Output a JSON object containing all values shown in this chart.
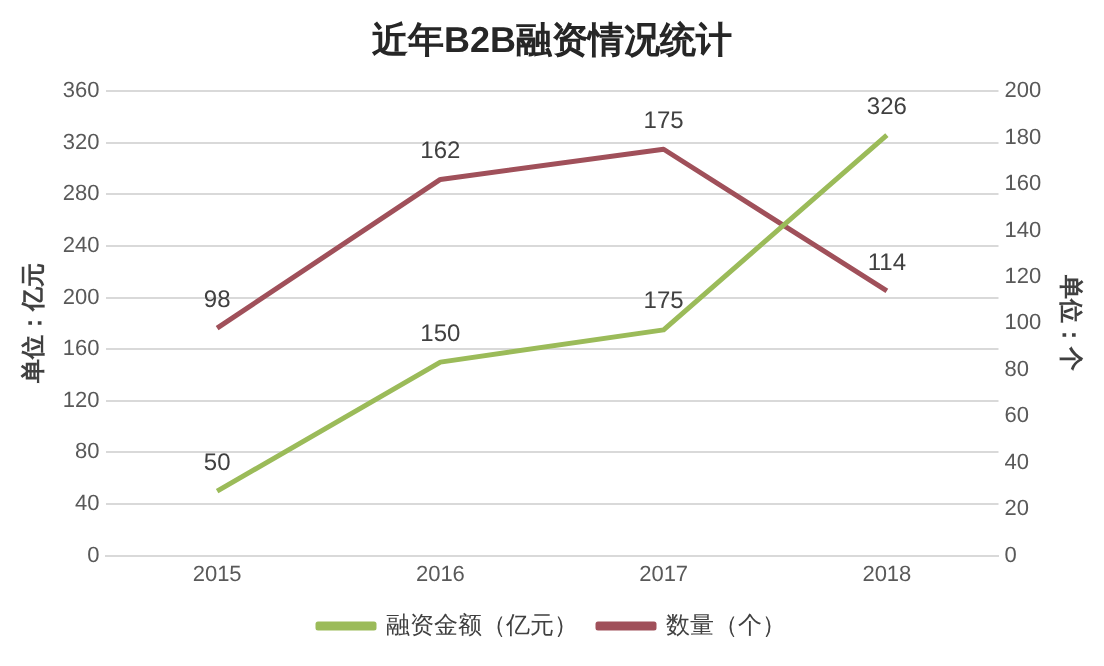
{
  "chart_data": {
    "type": "line",
    "title": "近年B2B融资情况统计",
    "ylabel": "单位：亿元",
    "y2label": "单位：个",
    "categories": [
      "2015",
      "2016",
      "2017",
      "2018"
    ],
    "series": [
      {
        "name": "融资金额（亿元）",
        "color": "#9bbb59",
        "values": [
          50,
          150,
          175,
          326
        ]
      },
      {
        "name": "数量（个）",
        "color": "#a0505a",
        "values": [
          98,
          162,
          175,
          114
        ],
        "axis": "y2"
      }
    ],
    "ylim": [
      0,
      360
    ],
    "yticks": [
      0,
      40,
      80,
      120,
      160,
      200,
      240,
      280,
      320,
      360
    ],
    "y2lim": [
      0,
      200
    ],
    "y2ticks": [
      0,
      20,
      40,
      60,
      80,
      100,
      120,
      140,
      160,
      180,
      200
    ],
    "grid": "y",
    "legend": "bottom",
    "data_labels": true,
    "marker": "none",
    "line_style": "solid"
  }
}
